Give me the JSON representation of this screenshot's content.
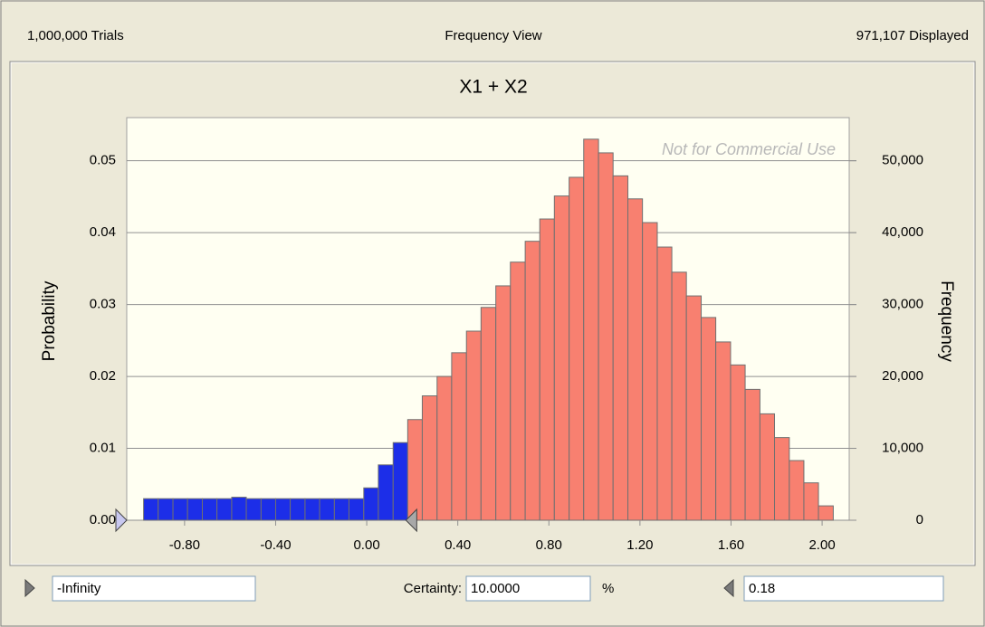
{
  "header": {
    "trials": "1,000,000 Trials",
    "view": "Frequency View",
    "displayed": "971,107 Displayed"
  },
  "chart_data": {
    "type": "histogram",
    "title": "X1 + X2",
    "ylabel": "Probability",
    "y2label": "Frequency",
    "watermark": "Not for Commercial Use",
    "bins": [
      -0.98,
      -0.916,
      -0.851,
      -0.787,
      -0.722,
      -0.658,
      -0.593,
      -0.529,
      -0.464,
      -0.4,
      -0.336,
      -0.271,
      -0.207,
      -0.142,
      -0.078,
      -0.013,
      0.051,
      0.116,
      0.18,
      0.244,
      0.309,
      0.373,
      0.438,
      0.502,
      0.567,
      0.631,
      0.696,
      0.76,
      0.824,
      0.889,
      0.953,
      1.018,
      1.082,
      1.147,
      1.211,
      1.276,
      1.34,
      1.404,
      1.469,
      1.533,
      1.598,
      1.662,
      1.727,
      1.791,
      1.856,
      1.92,
      1.984,
      2.049
    ],
    "values": [
      0.003,
      0.003,
      0.003,
      0.003,
      0.003,
      0.003,
      0.0032,
      0.003,
      0.003,
      0.003,
      0.003,
      0.003,
      0.003,
      0.003,
      0.003,
      0.0045,
      0.0077,
      0.0108,
      0.014,
      0.0173,
      0.02,
      0.0233,
      0.0263,
      0.0296,
      0.0326,
      0.0359,
      0.0388,
      0.0419,
      0.0451,
      0.0477,
      0.053,
      0.0511,
      0.0479,
      0.0447,
      0.0414,
      0.038,
      0.0345,
      0.0312,
      0.0282,
      0.0248,
      0.0216,
      0.0182,
      0.0148,
      0.0115,
      0.0083,
      0.0052,
      0.002
    ],
    "color": "#f88070",
    "selected_color": "#1c2ee8",
    "xlim": [
      -1.054,
      2.119
    ],
    "xticks": [
      {
        "value": -0.8,
        "label": "-0.80"
      },
      {
        "value": -0.4,
        "label": "-0.40"
      },
      {
        "value": 0,
        "label": "0.00"
      },
      {
        "value": 0.4,
        "label": "0.40"
      },
      {
        "value": 0.8,
        "label": "0.80"
      },
      {
        "value": 1.2,
        "label": "1.20"
      },
      {
        "value": 1.6,
        "label": "1.60"
      },
      {
        "value": 2,
        "label": "2.00"
      }
    ],
    "ylim": [
      0,
      0.056
    ],
    "yticks": [
      {
        "value": 0,
        "label": "0.00"
      },
      0.01,
      0.02,
      0.03,
      0.04,
      0.05
    ],
    "y2lim": [
      0,
      56000
    ],
    "y2ticks": [
      0,
      {
        "value": 10000,
        "label": "10,000"
      },
      {
        "value": 20000,
        "label": "20,000"
      },
      {
        "value": 30000,
        "label": "30,000"
      },
      {
        "value": 40000,
        "label": "40,000"
      },
      {
        "value": 50000,
        "label": "50,000"
      }
    ],
    "grid": true
  },
  "controls": {
    "lower": "-Infinity",
    "certainty_label": "Certainty:",
    "certainty": "10.0000",
    "certainty_unit": "%",
    "upper": 0.18
  }
}
